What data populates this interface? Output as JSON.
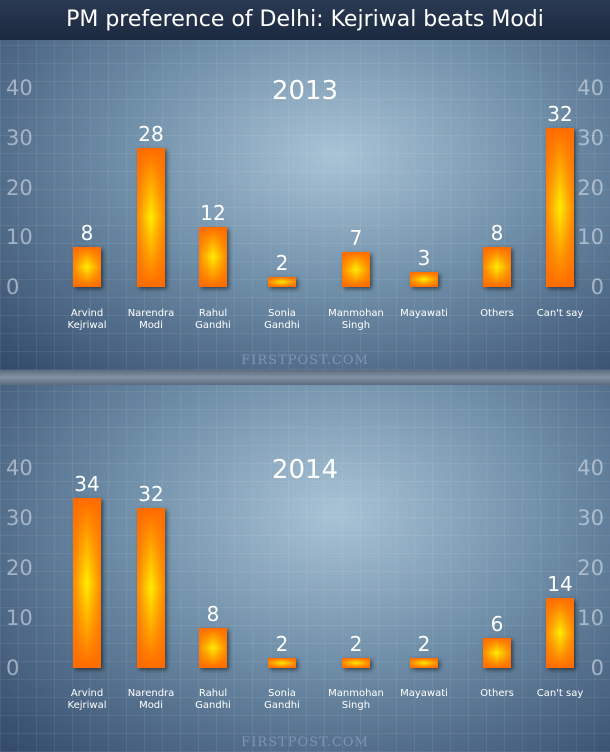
{
  "title": "PM preference of Delhi: Kejriwal beats Modi",
  "chart_data": [
    {
      "type": "bar",
      "title": "2013",
      "categories": [
        "Arvind\nKejriwal",
        "Narendra\nModi",
        "Rahul\nGandhi",
        "Sonia\nGandhi",
        "Manmohan\nSingh",
        "Mayawati",
        "Others",
        "Can't say"
      ],
      "values": [
        8,
        28,
        12,
        2,
        7,
        3,
        8,
        32
      ],
      "color": "#ff6a00",
      "ylim": [
        0,
        40
      ],
      "yticks": [
        0,
        10,
        20,
        30,
        40
      ],
      "source": "FIRSTPOST.COM"
    },
    {
      "type": "bar",
      "title": "2014",
      "categories": [
        "Arvind\nKejriwal",
        "Narendra\nModi",
        "Rahul\nGandhi",
        "Sonia\nGandhi",
        "Manmohan\nSingh",
        "Mayawati",
        "Others",
        "Can't say"
      ],
      "values": [
        34,
        32,
        8,
        2,
        2,
        2,
        6,
        14
      ],
      "color": "#ff6a00",
      "ylim": [
        0,
        40
      ],
      "yticks": [
        0,
        10,
        20,
        30,
        40
      ],
      "source": "FIRSTPOST.COM"
    }
  ]
}
